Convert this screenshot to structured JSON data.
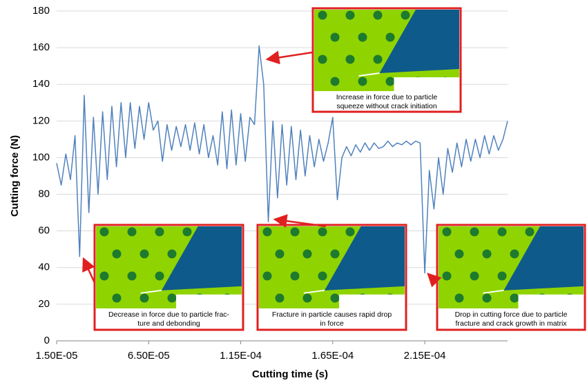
{
  "chart_data": {
    "type": "line",
    "x_label": "Cutting time (s)",
    "y_label": "Cutting force (N)",
    "x": [
      1.5e-05,
      1.75e-05,
      2e-05,
      2.25e-05,
      2.5e-05,
      2.75e-05,
      3e-05,
      3.25e-05,
      3.5e-05,
      3.75e-05,
      4e-05,
      4.25e-05,
      4.5e-05,
      4.75e-05,
      5e-05,
      5.25e-05,
      5.5e-05,
      5.75e-05,
      6e-05,
      6.25e-05,
      6.5e-05,
      6.75e-05,
      7e-05,
      7.25e-05,
      7.5e-05,
      7.75e-05,
      8e-05,
      8.25e-05,
      8.5e-05,
      8.75e-05,
      9e-05,
      9.25e-05,
      9.5e-05,
      9.75e-05,
      0.0001,
      0.0001025,
      0.000105,
      0.0001075,
      0.00011,
      0.0001125,
      0.000115,
      0.0001175,
      0.00012,
      0.0001225,
      0.000125,
      0.0001275,
      0.00013,
      0.0001325,
      0.000135,
      0.0001375,
      0.00014,
      0.0001425,
      0.000145,
      0.0001475,
      0.00015,
      0.0001525,
      0.000155,
      0.0001575,
      0.00016,
      0.0001625,
      0.000165,
      0.0001675,
      0.00017,
      0.0001725,
      0.000175,
      0.0001775,
      0.00018,
      0.0001825,
      0.000185,
      0.0001875,
      0.00019,
      0.0001925,
      0.000195,
      0.0001975,
      0.0002,
      0.0002025,
      0.000205,
      0.0002075,
      0.00021,
      0.0002125,
      0.000215,
      0.0002175,
      0.00022,
      0.0002225,
      0.000225,
      0.0002275,
      0.00023,
      0.0002325,
      0.000235,
      0.0002375,
      0.00024,
      0.0002425,
      0.000245,
      0.0002475,
      0.00025,
      0.0002525,
      0.000255,
      0.0002575,
      0.00026
    ],
    "series": [
      {
        "color": "#4f81bd",
        "values": [
          97,
          85,
          102,
          88,
          112,
          46,
          134,
          70,
          122,
          80,
          125,
          88,
          128,
          95,
          130,
          100,
          130,
          105,
          128,
          110,
          130,
          115,
          120,
          98,
          118,
          104,
          117,
          106,
          118,
          104,
          119,
          102,
          118,
          100,
          112,
          96,
          125,
          94,
          126,
          96,
          124,
          98,
          122,
          118,
          161,
          140,
          65,
          120,
          78,
          118,
          85,
          117,
          88,
          115,
          90,
          112,
          95,
          110,
          98,
          108,
          122,
          77,
          100,
          106,
          101,
          107,
          103,
          108,
          104,
          108,
          105,
          106,
          109,
          106,
          108,
          107,
          109,
          107,
          109,
          108,
          37,
          93,
          72,
          100,
          80,
          105,
          92,
          108,
          95,
          110,
          98,
          110,
          100,
          112,
          102,
          112,
          104,
          110,
          120
        ]
      }
    ],
    "xlim": [
      1.5e-05,
      0.00026
    ],
    "xticks": [
      {
        "value": 1.5e-05,
        "label": "1.50E-05"
      },
      {
        "value": 6.5e-05,
        "label": "6.50E-05"
      },
      {
        "value": 0.000115,
        "label": "1.15E-04"
      },
      {
        "value": 0.000165,
        "label": "1.65E-04"
      },
      {
        "value": 0.000215,
        "label": "2.15E-04"
      }
    ],
    "ylim": [
      0,
      180
    ],
    "yticks": [
      0,
      20,
      40,
      60,
      80,
      100,
      120,
      140,
      160,
      180
    ],
    "grid": true,
    "annotations": [
      {
        "lines": [
          "Increase in force due to particle",
          "squeeze without crack initiation"
        ]
      },
      {
        "lines": [
          "Decrease in force due to particle frac-",
          "ture and debonding"
        ]
      },
      {
        "lines": [
          "Fracture in particle causes rapid drop",
          "in force"
        ]
      },
      {
        "lines": [
          "Drop in cutting force due to particle",
          "fracture and crack growth in matrix"
        ]
      }
    ]
  }
}
